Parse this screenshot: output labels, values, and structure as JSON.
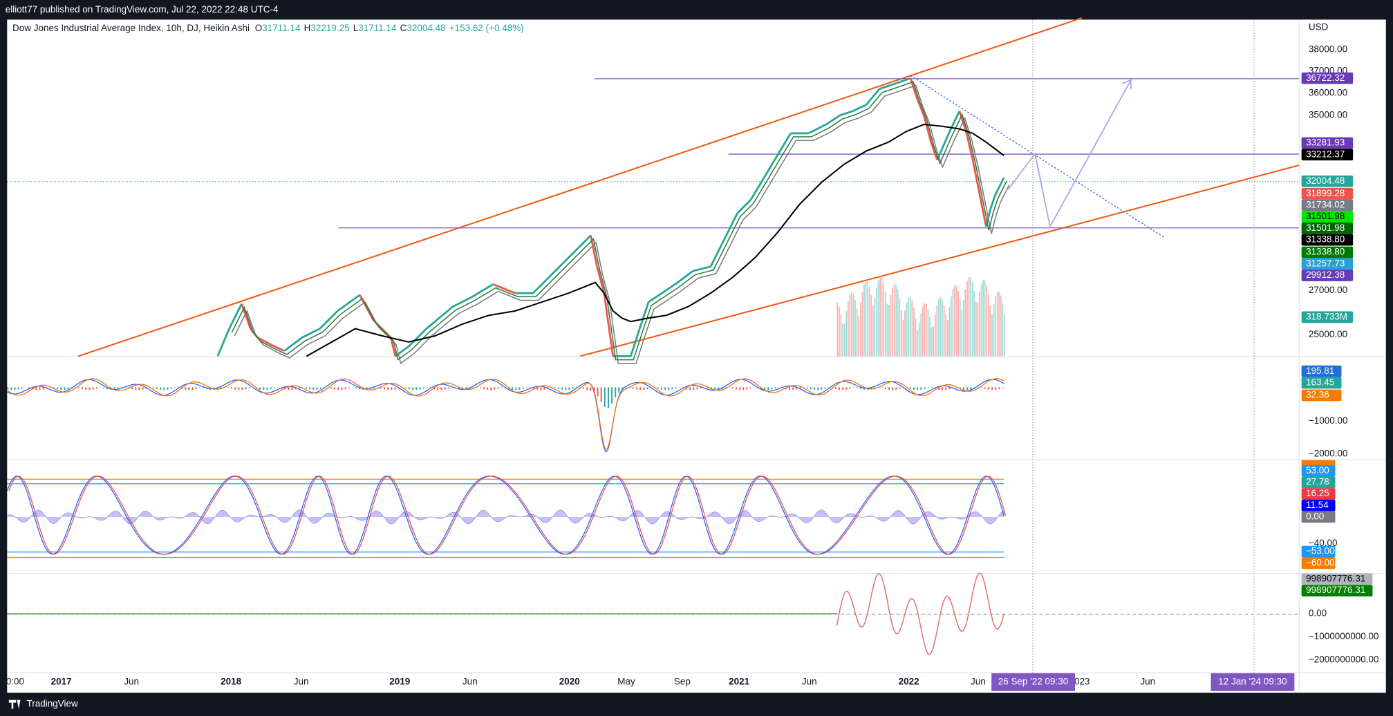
{
  "header": {
    "published": "elliott77 published on TradingView.com, Jul 22, 2022 22:48 UTC-4"
  },
  "legend": {
    "symbol": "Dow Jones Industrial Average Index, 10h, DJ, Heikin Ashi",
    "open_label": "O",
    "open": "31711.14",
    "high_label": "H",
    "high": "32219.25",
    "low_label": "L",
    "low": "31711.14",
    "close_label": "C",
    "close": "32004.48",
    "change": "+153.62 (+0.48%)"
  },
  "price_axis": {
    "currency": "USD",
    "ticks": [
      "38000.00",
      "37000.00",
      "36000.00",
      "35000.00",
      "27000.00",
      "25000.00"
    ],
    "labels": [
      {
        "text": "36722.32",
        "color": "#673ab7",
        "text_color": "#ffffff"
      },
      {
        "text": "33281.93",
        "color": "#673ab7",
        "text_color": "#ffffff"
      },
      {
        "text": "33212.37",
        "color": "#000000",
        "text_color": "#ffffff"
      },
      {
        "text": "32004.48",
        "color": "#26a69a",
        "text_color": "#ffffff"
      },
      {
        "text": "31899.28",
        "color": "#ef5350",
        "text_color": "#ffffff"
      },
      {
        "text": "31734.02",
        "color": "#787b86",
        "text_color": "#ffffff"
      },
      {
        "text": "31501.98",
        "color": "#00e600",
        "text_color": "#000000"
      },
      {
        "text": "31501.98",
        "color": "#006400",
        "text_color": "#ffffff"
      },
      {
        "text": "31338.80",
        "color": "#000000",
        "text_color": "#ffffff"
      },
      {
        "text": "31338.80",
        "color": "#007a00",
        "text_color": "#ffffff"
      },
      {
        "text": "31257.73",
        "color": "#29a0d8",
        "text_color": "#ffffff"
      },
      {
        "text": "29912.38",
        "color": "#673ab7",
        "text_color": "#ffffff"
      },
      {
        "text": "318.733M",
        "color": "#26a69a",
        "text_color": "#ffffff"
      }
    ]
  },
  "macd_axis": {
    "labels": [
      {
        "text": "195.81",
        "color": "#1e6fd9",
        "text_color": "#ffffff"
      },
      {
        "text": "163.45",
        "color": "#26a69a",
        "text_color": "#ffffff"
      },
      {
        "text": "32.36",
        "color": "#f57c00",
        "text_color": "#ffffff"
      }
    ],
    "ticks": [
      "−1000.00",
      "−2000.00"
    ]
  },
  "stoch_axis": {
    "labels": [
      {
        "text": "53.00",
        "color": "#2196f3",
        "text_color": "#ffffff"
      },
      {
        "text": "27.78",
        "color": "#26a69a",
        "text_color": "#ffffff"
      },
      {
        "text": "16.25",
        "color": "#f23645",
        "text_color": "#ffffff"
      },
      {
        "text": "11.54",
        "color": "#0000ff",
        "text_color": "#ffffff"
      },
      {
        "text": "0.00",
        "color": "#787b86",
        "text_color": "#ffffff"
      },
      {
        "text": "−53.00",
        "color": "#2196f3",
        "text_color": "#ffffff"
      },
      {
        "text": "−60.00",
        "color": "#f57c00",
        "text_color": "#ffffff"
      }
    ],
    "ticks": [
      "−40.00"
    ]
  },
  "volume_axis": {
    "labels": [
      {
        "text": "998907776.31",
        "color": "#b2b5be",
        "text_color": "#000000"
      },
      {
        "text": "998907776.31",
        "color": "#008000",
        "text_color": "#ffffff"
      }
    ],
    "ticks": [
      "0.00",
      "−1000000000.00",
      "−2000000000.00"
    ]
  },
  "time_axis": {
    "ticks": [
      "0:00",
      "2017",
      "Jun",
      "2018",
      "Jun",
      "2019",
      "Jun",
      "2020",
      "May",
      "Sep",
      "2021",
      "Jun",
      "2022",
      "Jun",
      "023",
      "Jun"
    ],
    "markers": [
      "26 Sep '22  09:30",
      "12 Jan '24  09:30"
    ]
  },
  "footer": {
    "brand": "TradingView"
  }
}
